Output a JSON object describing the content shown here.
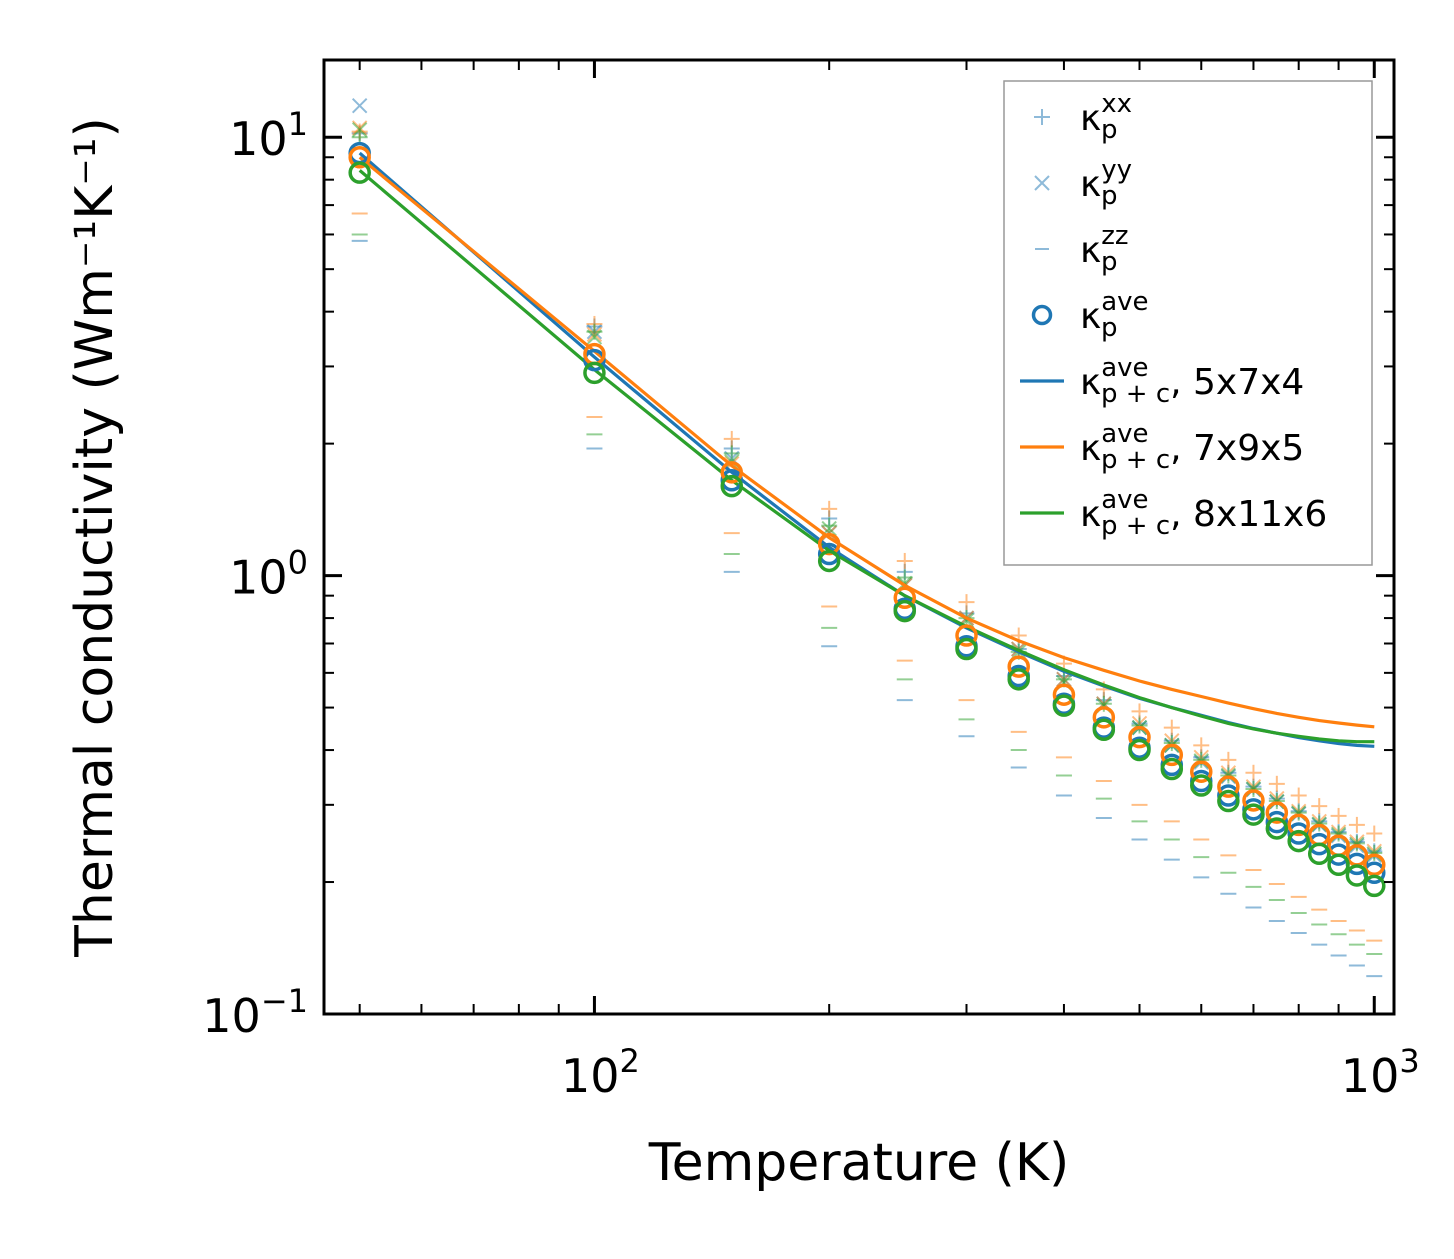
{
  "chart_data": {
    "type": "line",
    "xscale": "log",
    "yscale": "log",
    "xlabel": "Temperature (K)",
    "ylabel": "Thermal conductivity (Wm⁻¹K⁻¹)",
    "xlim": [
      45,
      1060
    ],
    "ylim": [
      0.1,
      15
    ],
    "x_ticks": [
      {
        "value": 100,
        "base": "10",
        "exp": "2"
      },
      {
        "value": 1000,
        "base": "10",
        "exp": "3"
      }
    ],
    "y_ticks": [
      {
        "value": 0.1,
        "base": "10",
        "exp": "−1"
      },
      {
        "value": 1,
        "base": "10",
        "exp": "0"
      },
      {
        "value": 10,
        "base": "10",
        "exp": "1"
      }
    ],
    "temperatures": [
      50,
      100,
      150,
      200,
      250,
      300,
      350,
      400,
      450,
      500,
      550,
      600,
      650,
      700,
      750,
      800,
      850,
      900,
      950,
      1000
    ],
    "grids": [
      {
        "name": "5x7x4",
        "color": "#1f77b4",
        "curve_p_plus_c": [
          9.2,
          3.15,
          1.72,
          1.16,
          0.9,
          0.76,
          0.67,
          0.605,
          0.56,
          0.525,
          0.5,
          0.48,
          0.462,
          0.448,
          0.437,
          0.427,
          0.42,
          0.414,
          0.41,
          0.408
        ],
        "kappa_p_xx": [
          10.2,
          3.7,
          1.95,
          1.35,
          1.02,
          0.82,
          0.68,
          0.59,
          0.52,
          0.46,
          0.42,
          0.385,
          0.355,
          0.33,
          0.31,
          0.29,
          0.275,
          0.26,
          0.247,
          0.235
        ],
        "kappa_p_yy": [
          11.8,
          3.6,
          1.85,
          1.25,
          0.95,
          0.8,
          0.68,
          0.58,
          0.51,
          0.45,
          0.41,
          0.375,
          0.348,
          0.325,
          0.305,
          0.286,
          0.27,
          0.255,
          0.242,
          0.23
        ],
        "kappa_p_zz": [
          5.8,
          1.95,
          1.02,
          0.69,
          0.52,
          0.43,
          0.365,
          0.315,
          0.28,
          0.25,
          0.225,
          0.205,
          0.188,
          0.175,
          0.163,
          0.153,
          0.144,
          0.136,
          0.129,
          0.122
        ],
        "kappa_p_ave": [
          9.2,
          3.1,
          1.65,
          1.12,
          0.84,
          0.69,
          0.59,
          0.51,
          0.45,
          0.405,
          0.37,
          0.34,
          0.315,
          0.293,
          0.274,
          0.258,
          0.244,
          0.231,
          0.22,
          0.21
        ]
      },
      {
        "name": "7x9x5",
        "color": "#ff7f0e",
        "curve_p_plus_c": [
          9.0,
          3.25,
          1.78,
          1.22,
          0.95,
          0.8,
          0.71,
          0.65,
          0.608,
          0.575,
          0.55,
          0.53,
          0.512,
          0.497,
          0.485,
          0.475,
          0.467,
          0.461,
          0.456,
          0.452
        ],
        "kappa_p_xx": [
          10.3,
          3.75,
          2.05,
          1.42,
          1.08,
          0.87,
          0.73,
          0.63,
          0.55,
          0.49,
          0.45,
          0.41,
          0.38,
          0.355,
          0.335,
          0.315,
          0.298,
          0.283,
          0.27,
          0.258
        ],
        "kappa_p_yy": [
          10.5,
          3.55,
          1.8,
          1.25,
          0.95,
          0.8,
          0.68,
          0.58,
          0.51,
          0.46,
          0.42,
          0.385,
          0.355,
          0.33,
          0.31,
          0.29,
          0.275,
          0.26,
          0.247,
          0.235
        ],
        "kappa_p_zz": [
          6.7,
          2.3,
          1.25,
          0.85,
          0.64,
          0.52,
          0.44,
          0.385,
          0.34,
          0.3,
          0.275,
          0.25,
          0.23,
          0.213,
          0.198,
          0.185,
          0.173,
          0.163,
          0.155,
          0.147
        ],
        "kappa_p_ave": [
          9.0,
          3.2,
          1.72,
          1.18,
          0.89,
          0.73,
          0.62,
          0.535,
          0.475,
          0.428,
          0.39,
          0.357,
          0.33,
          0.307,
          0.288,
          0.27,
          0.256,
          0.242,
          0.23,
          0.219
        ]
      },
      {
        "name": "8x11x6",
        "color": "#2ca02c",
        "curve_p_plus_c": [
          8.4,
          2.95,
          1.65,
          1.14,
          0.9,
          0.765,
          0.675,
          0.61,
          0.563,
          0.527,
          0.5,
          0.478,
          0.46,
          0.447,
          0.437,
          0.43,
          0.424,
          0.42,
          0.418,
          0.418
        ],
        "kappa_p_xx": [
          10.0,
          3.6,
          1.9,
          1.3,
          0.99,
          0.8,
          0.67,
          0.58,
          0.51,
          0.455,
          0.415,
          0.38,
          0.35,
          0.326,
          0.306,
          0.288,
          0.272,
          0.258,
          0.245,
          0.233
        ],
        "kappa_p_yy": [
          10.4,
          3.5,
          1.82,
          1.28,
          0.96,
          0.79,
          0.67,
          0.57,
          0.505,
          0.45,
          0.41,
          0.378,
          0.35,
          0.326,
          0.305,
          0.287,
          0.271,
          0.257,
          0.244,
          0.232
        ],
        "kappa_p_zz": [
          6.0,
          2.1,
          1.12,
          0.76,
          0.58,
          0.47,
          0.4,
          0.35,
          0.31,
          0.275,
          0.25,
          0.228,
          0.21,
          0.195,
          0.182,
          0.17,
          0.16,
          0.152,
          0.144,
          0.137
        ],
        "kappa_p_ave": [
          8.3,
          2.9,
          1.6,
          1.08,
          0.83,
          0.68,
          0.58,
          0.505,
          0.445,
          0.4,
          0.362,
          0.332,
          0.306,
          0.285,
          0.265,
          0.248,
          0.232,
          0.219,
          0.207,
          0.196
        ]
      }
    ],
    "legend": {
      "placement": "top-right",
      "entries": [
        {
          "kind": "plus",
          "base": "κ",
          "sup": "xx",
          "sub": "p",
          "suffix": "",
          "color": "#1f77b4"
        },
        {
          "kind": "cross",
          "base": "κ",
          "sup": "yy",
          "sub": "p",
          "suffix": "",
          "color": "#1f77b4"
        },
        {
          "kind": "dash",
          "base": "κ",
          "sup": "zz",
          "sub": "p",
          "suffix": "",
          "color": "#1f77b4"
        },
        {
          "kind": "circle",
          "base": "κ",
          "sup": "ave",
          "sub": "p",
          "suffix": "",
          "color": "#1f77b4"
        },
        {
          "kind": "line",
          "base": "κ",
          "sup": "ave",
          "sub": "p + c",
          "suffix": ", 5x7x4",
          "color": "#1f77b4"
        },
        {
          "kind": "line",
          "base": "κ",
          "sup": "ave",
          "sub": "p + c",
          "suffix": ", 7x9x5",
          "color": "#ff7f0e"
        },
        {
          "kind": "line",
          "base": "κ",
          "sup": "ave",
          "sub": "p + c",
          "suffix": ", 8x11x6",
          "color": "#2ca02c"
        }
      ]
    }
  }
}
